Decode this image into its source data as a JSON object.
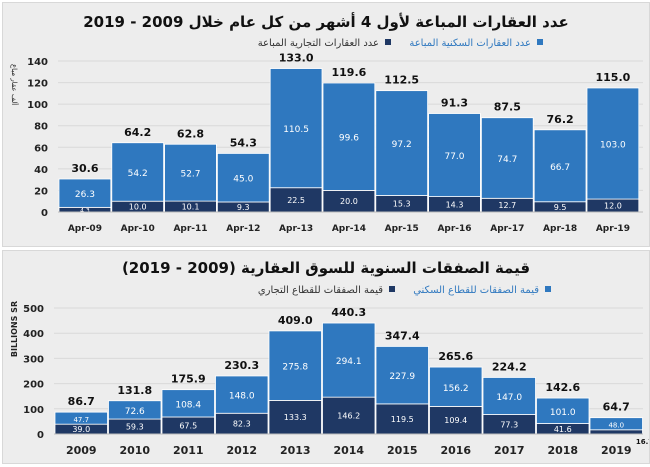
{
  "colors": {
    "residential": "#2f78bf",
    "commercial": "#1f3864",
    "background": "#ededed",
    "grid": "#d9d9d9"
  },
  "chart_data": [
    {
      "type": "bar",
      "stacked": true,
      "title": "عدد العقارات المباعة لأول 4 أشهر من كل عام خلال 2009 - 2019",
      "ylabel": "ألف عقار مباع",
      "ylim": [
        0,
        140
      ],
      "yticks": [
        0,
        20,
        40,
        60,
        80,
        100,
        120,
        140
      ],
      "grid": true,
      "legend": "top",
      "categories": [
        "Apr-09",
        "Apr-10",
        "Apr-11",
        "Apr-12",
        "Apr-13",
        "Apr-14",
        "Apr-15",
        "Apr-16",
        "Apr-17",
        "Apr-18",
        "Apr-19"
      ],
      "series": [
        {
          "name": "عدد العقارات التجارية المباعة",
          "values": [
            4.3,
            10.0,
            10.1,
            9.3,
            22.5,
            20.0,
            15.3,
            14.3,
            12.7,
            9.5,
            12.0
          ]
        },
        {
          "name": "عدد العقارات السكنية المباعة",
          "values": [
            26.3,
            54.2,
            52.7,
            45.0,
            110.5,
            99.6,
            97.2,
            77.0,
            74.7,
            66.7,
            103.0
          ]
        }
      ],
      "totals": [
        30.6,
        64.2,
        62.8,
        54.3,
        133.0,
        119.6,
        112.5,
        91.3,
        87.5,
        76.2,
        115.0
      ]
    },
    {
      "type": "bar",
      "stacked": true,
      "title": "قيمة الصفقات السنوية للسوق العقارية (2009 - 2019)",
      "ylabel": "BILLIONS SR",
      "ylim": [
        0,
        500
      ],
      "yticks": [
        0,
        100,
        200,
        300,
        400,
        500
      ],
      "grid": true,
      "legend": "top",
      "categories": [
        "2009",
        "2010",
        "2011",
        "2012",
        "2013",
        "2014",
        "2015",
        "2016",
        "2017",
        "2018",
        "2019"
      ],
      "series": [
        {
          "name": "قيمة الصفقات للقطاع التجاري",
          "values": [
            39.0,
            59.3,
            67.5,
            82.3,
            133.3,
            146.2,
            119.5,
            109.4,
            77.3,
            41.6,
            16.7
          ]
        },
        {
          "name": "قيمة الصفقات للقطاع السكني",
          "values": [
            47.7,
            72.6,
            108.4,
            148.0,
            275.8,
            294.1,
            227.9,
            156.2,
            147.0,
            101.0,
            48.0
          ]
        }
      ],
      "totals": [
        86.7,
        131.8,
        175.9,
        230.3,
        409.0,
        440.3,
        347.4,
        265.6,
        224.2,
        142.6,
        64.7
      ]
    }
  ]
}
